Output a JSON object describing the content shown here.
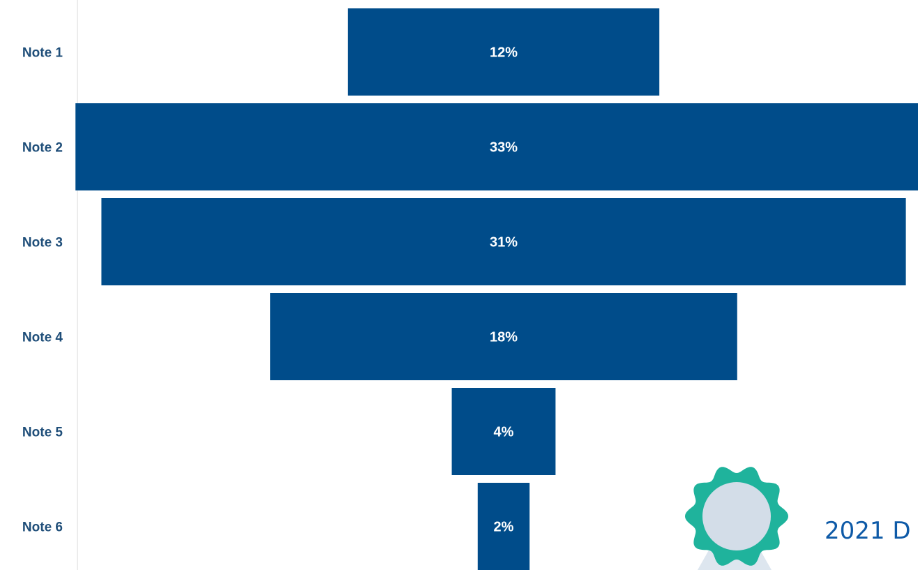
{
  "chart_data": {
    "type": "bar",
    "orientation": "horizontal-centered-funnel",
    "categories": [
      "Note 1",
      "Note 2",
      "Note 3",
      "Note 4",
      "Note 5",
      "Note 6"
    ],
    "values": [
      12,
      33,
      31,
      18,
      4,
      2
    ],
    "value_labels": [
      "12%",
      "33%",
      "31%",
      "18%",
      "4%",
      "2%"
    ],
    "unit": "%",
    "title": "",
    "xlabel": "",
    "ylabel": "",
    "grid": false,
    "legend": "none"
  },
  "badge": {
    "text": "2021 D"
  },
  "colors": {
    "bar": "#004c8a",
    "bar_text": "#ffffff",
    "category_text": "#1f4e79",
    "axis_line": "#d9d9d9",
    "badge_ring": "#1fb39c",
    "badge_center": "#d3dde8",
    "badge_ribbon": "#dde6ef",
    "badge_text": "#0e5aa7"
  }
}
